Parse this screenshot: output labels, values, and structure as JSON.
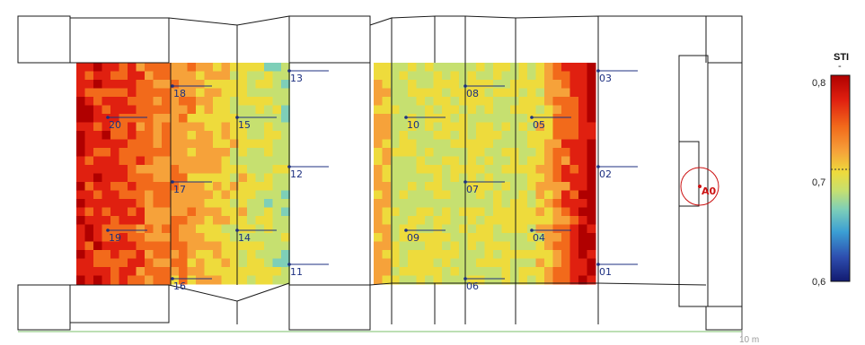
{
  "legend": {
    "title": "STI",
    "ticks": [
      "0,8",
      "0,7",
      "0,6"
    ],
    "colors": [
      "#b00000",
      "#e02010",
      "#f26a1b",
      "#f6a23a",
      "#eedb3c",
      "#c6e070",
      "#7ecfb8",
      "#3b9fd4",
      "#2e4fb0",
      "#121a70"
    ]
  },
  "scale_label": "10 m",
  "source": {
    "label": "A0"
  },
  "receivers": [
    {
      "label": "01"
    },
    {
      "label": "02"
    },
    {
      "label": "03"
    },
    {
      "label": "04"
    },
    {
      "label": "05"
    },
    {
      "label": "06"
    },
    {
      "label": "07"
    },
    {
      "label": "08"
    },
    {
      "label": "09"
    },
    {
      "label": "10"
    },
    {
      "label": "11"
    },
    {
      "label": "12"
    },
    {
      "label": "13"
    },
    {
      "label": "14"
    },
    {
      "label": "15"
    },
    {
      "label": "16"
    },
    {
      "label": "17"
    },
    {
      "label": "18"
    },
    {
      "label": "19"
    },
    {
      "label": "20"
    }
  ]
}
